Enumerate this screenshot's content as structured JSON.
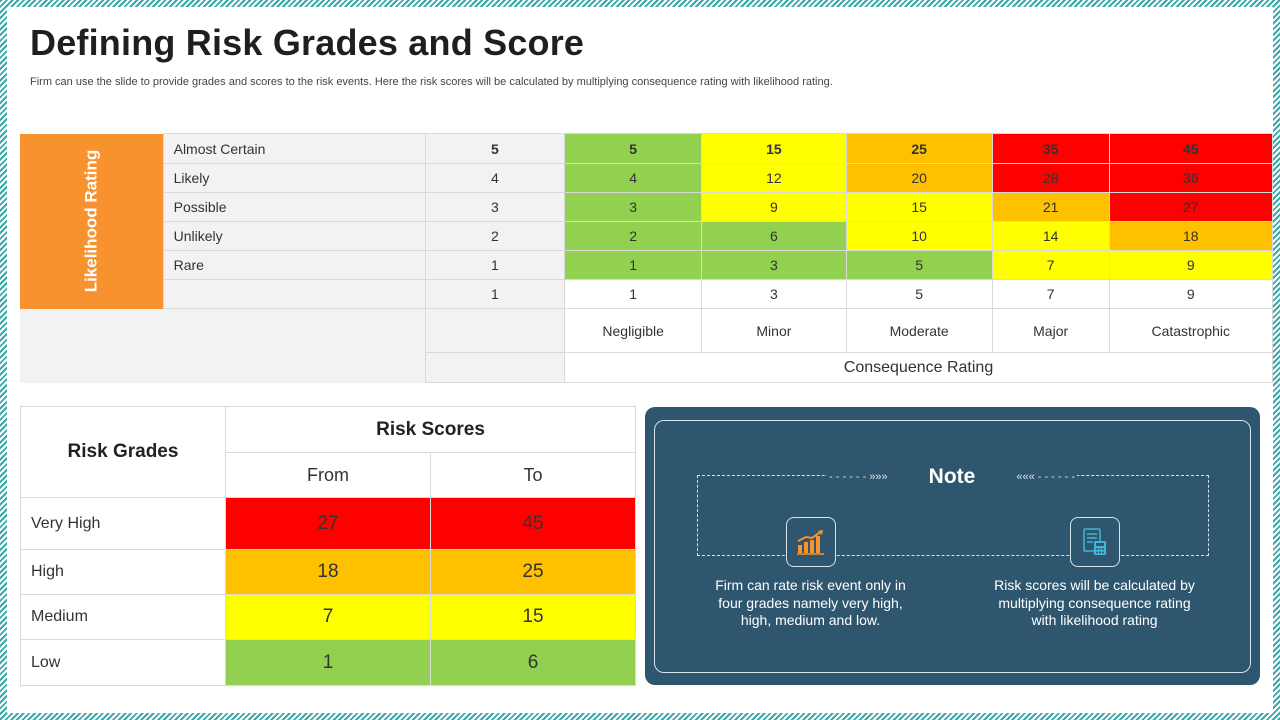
{
  "slide": {
    "title": "Defining Risk Grades and Score",
    "subtitle": "Firm can use the slide to provide grades and scores to the  risk events. Here the  risk scores will be calculated by multiplying consequence rating with likelihood rating."
  },
  "matrix": {
    "vertical_label": "Likelihood Rating",
    "rows": [
      {
        "label": "Almost Certain",
        "rating": "5",
        "cells": [
          "5",
          "15",
          "25",
          "35",
          "45"
        ]
      },
      {
        "label": "Likely",
        "rating": "4",
        "cells": [
          "4",
          "12",
          "20",
          "28",
          "36"
        ]
      },
      {
        "label": "Possible",
        "rating": "3",
        "cells": [
          "3",
          "9",
          "15",
          "21",
          "27"
        ]
      },
      {
        "label": "Unlikely",
        "rating": "2",
        "cells": [
          "2",
          "6",
          "10",
          "14",
          "18"
        ]
      },
      {
        "label": "Rare",
        "rating": "1",
        "cells": [
          "1",
          "3",
          "5",
          "7",
          "9"
        ]
      }
    ],
    "consequence_values": {
      "rating": "1",
      "cells": [
        "1",
        "3",
        "5",
        "7",
        "9"
      ]
    },
    "consequence_labels": [
      "Negligible",
      "Minor",
      "Moderate",
      "Major",
      "Catastrophic"
    ],
    "consequence_title": "Consequence Rating",
    "colors": {
      "green": "#92d050",
      "yellow": "#ffff00",
      "orange": "#ffc000",
      "red": "#ff0000"
    }
  },
  "grades": {
    "header_grades": "Risk Grades",
    "header_scores": "Risk Scores",
    "header_from": "From",
    "header_to": "To",
    "rows": [
      {
        "grade": "Very High",
        "from": "27",
        "to": "45"
      },
      {
        "grade": "High",
        "from": "18",
        "to": "25"
      },
      {
        "grade": "Medium",
        "from": "7",
        "to": "15"
      },
      {
        "grade": "Low",
        "from": "1",
        "to": "6"
      }
    ]
  },
  "note": {
    "title": "Note",
    "icon_1": "growth-chart-icon",
    "icon_2": "calculation-document-icon",
    "text_1": "Firm can rate risk event only in four grades namely very high, high, medium and low.",
    "text_2": "Risk scores will be calculated by multiplying consequence rating with likelihood rating",
    "panel_color": "#2e566f",
    "icon_color": "#f7922e"
  }
}
